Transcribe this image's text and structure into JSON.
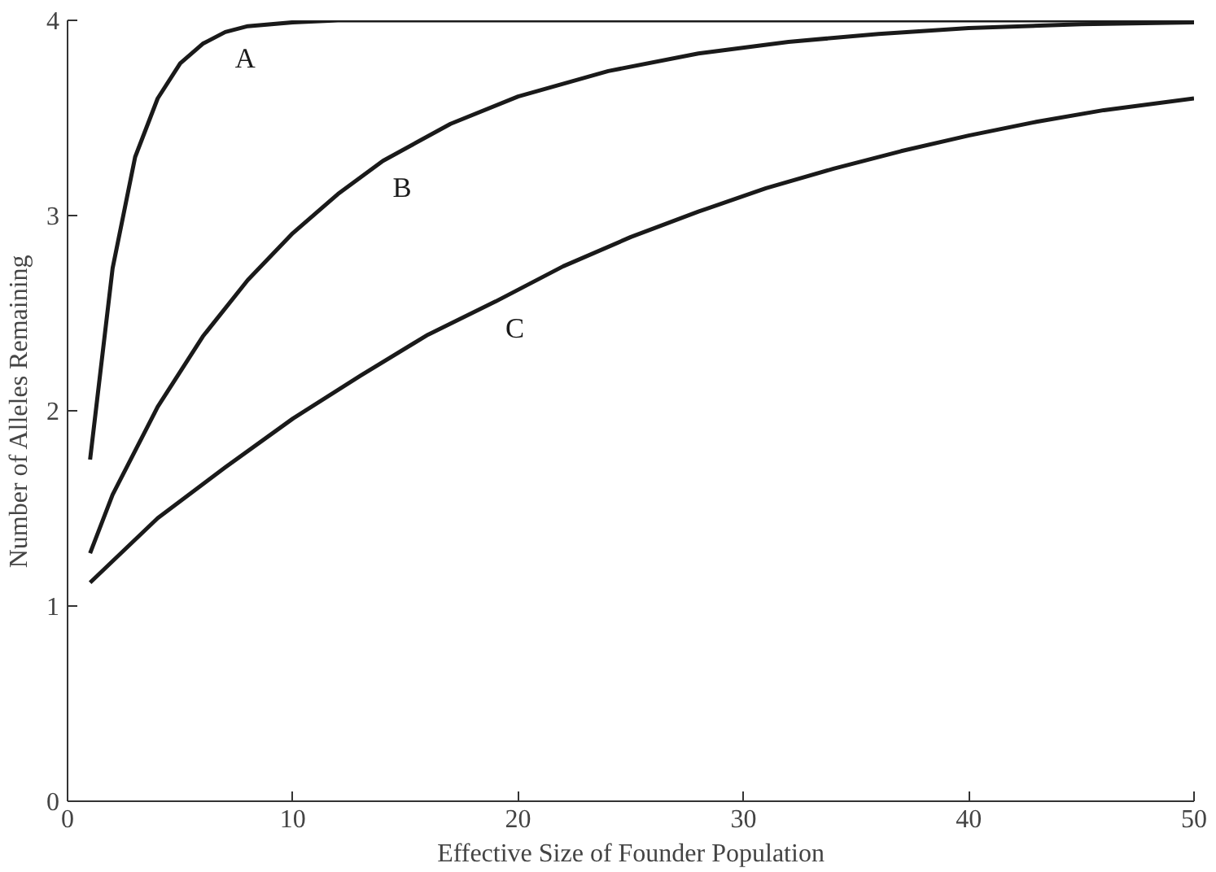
{
  "chart_data": {
    "type": "line",
    "xlabel": "Effective Size of Founder Population",
    "ylabel": "Number of Alleles Remaining",
    "xlim": [
      0,
      50
    ],
    "ylim": [
      0,
      4
    ],
    "xticks": [
      0,
      10,
      20,
      30,
      40,
      50
    ],
    "yticks": [
      0,
      1,
      2,
      3,
      4
    ],
    "grid": false,
    "legend": false,
    "marker": "none",
    "line_style": "solid",
    "series": [
      {
        "name": "A",
        "color": "#1a1a1a",
        "x": [
          1,
          2,
          3,
          4,
          5,
          6,
          7,
          8,
          10,
          12,
          20,
          30,
          40,
          50
        ],
        "values": [
          1.75,
          2.73,
          3.3,
          3.6,
          3.78,
          3.88,
          3.94,
          3.97,
          3.99,
          4.0,
          4.0,
          4.0,
          4.0,
          4.0
        ]
      },
      {
        "name": "B",
        "color": "#1a1a1a",
        "x": [
          1,
          2,
          4,
          6,
          8,
          10,
          12,
          14,
          17,
          20,
          24,
          28,
          32,
          36,
          40,
          45,
          50
        ],
        "values": [
          1.27,
          1.57,
          2.02,
          2.38,
          2.67,
          2.91,
          3.11,
          3.28,
          3.47,
          3.61,
          3.74,
          3.83,
          3.89,
          3.93,
          3.96,
          3.98,
          3.99
        ]
      },
      {
        "name": "C",
        "color": "#1a1a1a",
        "x": [
          1,
          4,
          7,
          10,
          13,
          16,
          19,
          22,
          25,
          28,
          31,
          34,
          37,
          40,
          43,
          46,
          50
        ],
        "values": [
          1.12,
          1.45,
          1.71,
          1.96,
          2.18,
          2.39,
          2.56,
          2.74,
          2.89,
          3.02,
          3.14,
          3.24,
          3.33,
          3.41,
          3.48,
          3.54,
          3.6
        ]
      }
    ]
  }
}
